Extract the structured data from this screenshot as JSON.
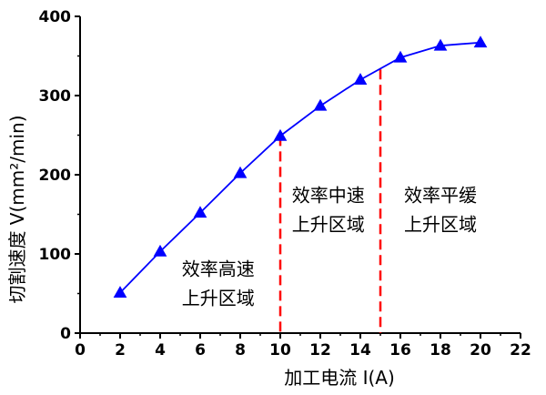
{
  "chart_data": {
    "type": "line",
    "xlabel": "加工电流 I(A)",
    "ylabel": "切割速度 V(mm²/min)",
    "xlim": [
      0,
      22
    ],
    "ylim": [
      0,
      400
    ],
    "x_ticks": [
      0,
      2,
      4,
      6,
      8,
      10,
      12,
      14,
      16,
      18,
      20,
      22
    ],
    "y_ticks": [
      0,
      100,
      200,
      300,
      400
    ],
    "x_tick_labels": [
      "0",
      "2",
      "4",
      "6",
      "8",
      "10",
      "12",
      "14",
      "16",
      "18",
      "20",
      "22"
    ],
    "y_tick_labels": [
      "0",
      "100",
      "200",
      "300",
      "400"
    ],
    "grid": false,
    "series": [
      {
        "x": [
          2,
          4,
          6,
          8,
          10,
          12,
          14,
          16,
          18,
          20
        ],
        "values": [
          51,
          103,
          152,
          202,
          249,
          287,
          320,
          348,
          363,
          367
        ],
        "color": "#0000ff",
        "marker": "triangle"
      }
    ],
    "vlines": [
      {
        "x": 10,
        "y_top": 249,
        "color": "#ff0000",
        "style": "dashed"
      },
      {
        "x": 15,
        "y_top": 333,
        "color": "#ff0000",
        "style": "dashed"
      }
    ],
    "annotations": [
      {
        "lines": [
          "效率高速",
          "上升区域"
        ],
        "x": 6.9,
        "y": 73
      },
      {
        "lines": [
          "效率中速",
          "上升区域"
        ],
        "x": 12.4,
        "y": 166
      },
      {
        "lines": [
          "效率平缓",
          "上升区域"
        ],
        "x": 18,
        "y": 166
      }
    ]
  }
}
